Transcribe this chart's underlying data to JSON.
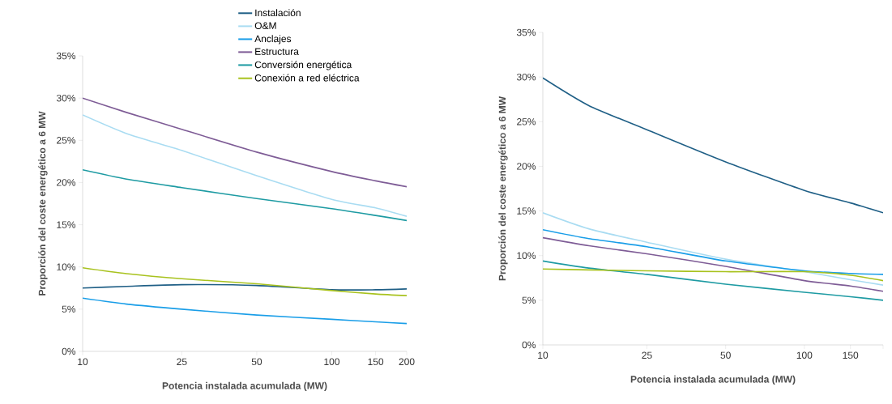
{
  "chart_data": [
    {
      "type": "line",
      "xlabel": "Potencia instalada acumulada (MW)",
      "ylabel": "Proporción del coste energético a 6 MW",
      "log": "x",
      "legend": "top right",
      "grid": false,
      "xlim": [
        10,
        200
      ],
      "xticks": [
        10,
        25,
        50,
        100,
        150,
        200
      ],
      "ylim": [
        0,
        35
      ],
      "yticks": [
        {
          "value": 0,
          "label": "0%"
        },
        {
          "value": 5,
          "label": "5%"
        },
        {
          "value": 10,
          "label": "10%"
        },
        {
          "value": 15,
          "label": "15%"
        },
        {
          "value": 20,
          "label": "20%"
        },
        {
          "value": 25,
          "label": "25%"
        },
        {
          "value": 30,
          "label": "30%"
        },
        {
          "value": 35,
          "label": "35%"
        }
      ],
      "x": [
        10,
        15,
        25,
        50,
        100,
        150,
        200
      ],
      "series": [
        {
          "name": "Instalación",
          "color": "#1f5f86",
          "values": [
            7.5,
            7.7,
            7.9,
            7.8,
            7.3,
            7.3,
            7.4
          ]
        },
        {
          "name": "O&M",
          "color": "#a9dcf2",
          "values": [
            28,
            25.8,
            23.8,
            20.8,
            18.0,
            17.0,
            16.0
          ]
        },
        {
          "name": "Anclajes",
          "color": "#1a9ee8",
          "values": [
            6.3,
            5.6,
            5.0,
            4.3,
            3.8,
            3.5,
            3.3
          ]
        },
        {
          "name": "Estructura",
          "color": "#7e5c96",
          "values": [
            30,
            28.3,
            26.3,
            23.6,
            21.3,
            20.2,
            19.5
          ]
        },
        {
          "name": "Conversión energética",
          "color": "#1e9ba3",
          "values": [
            21.5,
            20.4,
            19.4,
            18.1,
            16.9,
            16.1,
            15.5
          ]
        },
        {
          "name": "Conexión a red eléctrica",
          "color": "#a8c21e",
          "values": [
            9.9,
            9.2,
            8.6,
            8.0,
            7.2,
            6.8,
            6.6
          ]
        }
      ]
    },
    {
      "type": "line",
      "xlabel": "Potencia instalada acumulada (MW)",
      "ylabel": "Proporción del coste energético a 6 MW",
      "log": "x",
      "legend": false,
      "grid": false,
      "xlim": [
        10,
        200
      ],
      "xticks": [
        10,
        25,
        50,
        100,
        150,
        {
          "value": 200,
          "label": null
        }
      ],
      "ylim": [
        0,
        35
      ],
      "yticks": [
        {
          "value": 0,
          "label": "0%"
        },
        {
          "value": 5,
          "label": "5%"
        },
        {
          "value": 10,
          "label": "10%"
        },
        {
          "value": 15,
          "label": "15%"
        },
        {
          "value": 20,
          "label": "20%"
        },
        {
          "value": 25,
          "label": "25%"
        },
        {
          "value": 30,
          "label": "30%"
        },
        {
          "value": 35,
          "label": "35%"
        }
      ],
      "x": [
        10,
        15,
        25,
        50,
        100,
        150,
        200
      ],
      "series": [
        {
          "color": "#1f5f86",
          "values": [
            29.9,
            26.8,
            24.1,
            20.5,
            17.3,
            15.9,
            14.8
          ]
        },
        {
          "color": "#a9dcf2",
          "values": [
            14.8,
            13.0,
            11.5,
            9.6,
            8.2,
            7.3,
            6.7
          ]
        },
        {
          "color": "#1a9ee8",
          "values": [
            12.9,
            11.9,
            11.0,
            9.4,
            8.3,
            8.0,
            7.9
          ]
        },
        {
          "color": "#7e5c96",
          "values": [
            12.0,
            11.1,
            10.2,
            8.8,
            7.2,
            6.6,
            6.0
          ]
        },
        {
          "color": "#1e9ba3",
          "values": [
            9.4,
            8.6,
            7.9,
            6.8,
            5.9,
            5.4,
            5.0
          ]
        },
        {
          "color": "#a8c21e",
          "values": [
            8.5,
            8.4,
            8.3,
            8.2,
            8.2,
            7.8,
            7.2
          ]
        }
      ]
    }
  ]
}
